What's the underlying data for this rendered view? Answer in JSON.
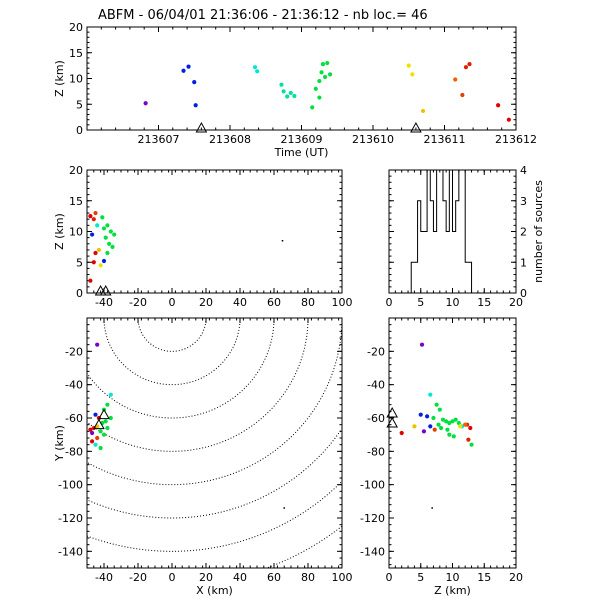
{
  "title": "ABFM - 06/04/01 21:36:06 - 21:36:12 - nb loc.=      46",
  "chart_data": [
    {
      "id": "time_panel",
      "type": "scatter",
      "xlabel": "Time (UT)",
      "ylabel": "Z (km)",
      "xlim": [
        213606,
        213612
      ],
      "ylim": [
        0,
        20
      ],
      "xticks": [
        "213607",
        "213608",
        "213609",
        "213610",
        "213611",
        "213612"
      ],
      "yticks": [
        "0",
        "5",
        "10",
        "15",
        "20"
      ],
      "stations": [
        213607.6,
        213610.6
      ],
      "points": [
        {
          "x": 213606.82,
          "y": 5.2,
          "color": "#7b00c8"
        },
        {
          "x": 213607.35,
          "y": 11.5,
          "color": "#0020e0"
        },
        {
          "x": 213607.42,
          "y": 12.3,
          "color": "#0020e0"
        },
        {
          "x": 213607.5,
          "y": 9.3,
          "color": "#0020e0"
        },
        {
          "x": 213607.52,
          "y": 4.8,
          "color": "#0020e0"
        },
        {
          "x": 213608.35,
          "y": 12.2,
          "color": "#00e8d0"
        },
        {
          "x": 213608.38,
          "y": 11.4,
          "color": "#00e8d0"
        },
        {
          "x": 213608.72,
          "y": 8.8,
          "color": "#00e0a0"
        },
        {
          "x": 213608.75,
          "y": 7.5,
          "color": "#00e0a0"
        },
        {
          "x": 213608.8,
          "y": 6.5,
          "color": "#00e0a0"
        },
        {
          "x": 213608.85,
          "y": 7.2,
          "color": "#00e0a0"
        },
        {
          "x": 213608.9,
          "y": 6.6,
          "color": "#00e0a0"
        },
        {
          "x": 213609.15,
          "y": 4.4,
          "color": "#00e040"
        },
        {
          "x": 213609.2,
          "y": 8.0,
          "color": "#00e040"
        },
        {
          "x": 213609.25,
          "y": 9.5,
          "color": "#00e040"
        },
        {
          "x": 213609.28,
          "y": 11.2,
          "color": "#00e040"
        },
        {
          "x": 213609.3,
          "y": 12.8,
          "color": "#00e040"
        },
        {
          "x": 213609.33,
          "y": 10.3,
          "color": "#00e040"
        },
        {
          "x": 213609.36,
          "y": 13.0,
          "color": "#00e040"
        },
        {
          "x": 213609.4,
          "y": 10.8,
          "color": "#00e040"
        },
        {
          "x": 213609.25,
          "y": 6.3,
          "color": "#00e040"
        },
        {
          "x": 213610.5,
          "y": 12.5,
          "color": "#f0e000"
        },
        {
          "x": 213610.55,
          "y": 10.8,
          "color": "#f0e000"
        },
        {
          "x": 213610.7,
          "y": 3.7,
          "color": "#f0c000"
        },
        {
          "x": 213611.15,
          "y": 9.8,
          "color": "#f06000"
        },
        {
          "x": 213611.25,
          "y": 6.8,
          "color": "#e04000"
        },
        {
          "x": 213611.3,
          "y": 12.2,
          "color": "#e02000"
        },
        {
          "x": 213611.35,
          "y": 12.8,
          "color": "#e02000"
        },
        {
          "x": 213611.75,
          "y": 4.8,
          "color": "#e00000"
        },
        {
          "x": 213611.9,
          "y": 2.0,
          "color": "#e00000"
        }
      ]
    },
    {
      "id": "xz_panel",
      "type": "scatter",
      "ylabel": "Z (km)",
      "xlim": [
        -50,
        100
      ],
      "ylim": [
        0,
        20
      ],
      "xticks": [
        "-40",
        "-20",
        "0",
        "20",
        "40",
        "60",
        "80",
        "100"
      ],
      "yticks": [
        "0",
        "5",
        "10",
        "15",
        "20"
      ],
      "stations": [
        -42,
        -39
      ],
      "points": [
        {
          "x": -48,
          "y": 12.5,
          "color": "#e00000"
        },
        {
          "x": -46,
          "y": 12.0,
          "color": "#e02000"
        },
        {
          "x": -45,
          "y": 13.0,
          "color": "#e04000"
        },
        {
          "x": -47,
          "y": 9.5,
          "color": "#0020e0"
        },
        {
          "x": -44,
          "y": 11.0,
          "color": "#00e8d0"
        },
        {
          "x": -45,
          "y": 6.5,
          "color": "#e00000"
        },
        {
          "x": -43,
          "y": 7.0,
          "color": "#f0c000"
        },
        {
          "x": -46,
          "y": 5.0,
          "color": "#e00000"
        },
        {
          "x": -42,
          "y": 4.5,
          "color": "#f0e000"
        },
        {
          "x": -48,
          "y": 2.0,
          "color": "#e00000"
        },
        {
          "x": -40,
          "y": 5.2,
          "color": "#0020e0"
        },
        {
          "x": -41,
          "y": 12.3,
          "color": "#00e040"
        },
        {
          "x": -38,
          "y": 11.0,
          "color": "#00e040"
        },
        {
          "x": -36,
          "y": 10.0,
          "color": "#00e040"
        },
        {
          "x": -39,
          "y": 9.0,
          "color": "#00e040"
        },
        {
          "x": -37,
          "y": 8.0,
          "color": "#00e040"
        },
        {
          "x": -35,
          "y": 7.5,
          "color": "#00e040"
        },
        {
          "x": -38,
          "y": 6.5,
          "color": "#00e040"
        },
        {
          "x": -34,
          "y": 9.5,
          "color": "#00e040"
        },
        {
          "x": -40,
          "y": 10.5,
          "color": "#00e040"
        },
        {
          "x": 65,
          "y": 8.5,
          "color": "#000000",
          "small": true
        }
      ]
    },
    {
      "id": "histogram_panel",
      "type": "bar",
      "ylabel": "number of sources",
      "xlim": [
        0,
        20
      ],
      "ylim": [
        0,
        4
      ],
      "xticks": [
        "0",
        "5",
        "10",
        "15",
        "20"
      ],
      "yticks": [
        "0",
        "1",
        "2",
        "3",
        "4"
      ],
      "bin_width": 0.5,
      "bin_start": 3.5,
      "values": [
        1,
        1,
        3,
        2,
        2,
        4,
        3,
        2,
        4,
        4,
        3,
        2,
        4,
        2,
        3,
        4,
        4,
        1,
        1
      ]
    },
    {
      "id": "xy_panel",
      "type": "scatter",
      "xlabel": "X (km)",
      "ylabel": "Y (km)",
      "xlim": [
        -50,
        100
      ],
      "ylim": [
        -150,
        0
      ],
      "xticks": [
        "-40",
        "-20",
        "0",
        "20",
        "40",
        "60",
        "80",
        "100"
      ],
      "yticks": [
        "-140",
        "-120",
        "-100",
        "-80",
        "-60",
        "-40",
        "-20"
      ],
      "range_rings_km": [
        20,
        40,
        60,
        80,
        100,
        120,
        140,
        160
      ],
      "stations": [
        [
          -40,
          -58
        ],
        [
          -43,
          -64
        ]
      ],
      "points": [
        {
          "x": -44,
          "y": -16,
          "color": "#7b00c8"
        },
        {
          "x": -36,
          "y": -46,
          "color": "#00e8d0"
        },
        {
          "x": -38,
          "y": -52,
          "color": "#00e040"
        },
        {
          "x": -40,
          "y": -55,
          "color": "#00e040"
        },
        {
          "x": -45,
          "y": -58,
          "color": "#0020e0"
        },
        {
          "x": -43,
          "y": -60,
          "color": "#e00000"
        },
        {
          "x": -41,
          "y": -63,
          "color": "#00e040"
        },
        {
          "x": -44,
          "y": -65,
          "color": "#f0c000"
        },
        {
          "x": -46,
          "y": -66,
          "color": "#e02000"
        },
        {
          "x": -48,
          "y": -67,
          "color": "#e00000"
        },
        {
          "x": -47,
          "y": -69,
          "color": "#7b00c8"
        },
        {
          "x": -42,
          "y": -68,
          "color": "#00e040"
        },
        {
          "x": -40,
          "y": -70,
          "color": "#00e040"
        },
        {
          "x": -38,
          "y": -66,
          "color": "#00e040"
        },
        {
          "x": -36,
          "y": -60,
          "color": "#00e040"
        },
        {
          "x": -39,
          "y": -62,
          "color": "#00e040"
        },
        {
          "x": -44,
          "y": -72,
          "color": "#e04000"
        },
        {
          "x": -47,
          "y": -74,
          "color": "#e00000"
        },
        {
          "x": -45,
          "y": -76,
          "color": "#00e8d0"
        },
        {
          "x": -42,
          "y": -78,
          "color": "#00e040"
        },
        {
          "x": 66,
          "y": -114,
          "color": "#000000",
          "small": true
        }
      ]
    },
    {
      "id": "zy_panel",
      "type": "scatter",
      "xlabel": "Z (km)",
      "xlim": [
        0,
        20
      ],
      "ylim": [
        -150,
        0
      ],
      "xticks": [
        "0",
        "5",
        "10",
        "15",
        "20"
      ],
      "yticks": [
        "-140",
        "-120",
        "-100",
        "-80",
        "-60",
        "-40",
        "-20"
      ],
      "stations": [
        [
          0.5,
          -57
        ],
        [
          0.5,
          -63
        ]
      ],
      "points": [
        {
          "x": 5.2,
          "y": -16,
          "color": "#7b00c8"
        },
        {
          "x": 6.5,
          "y": -46,
          "color": "#00e8d0"
        },
        {
          "x": 7.5,
          "y": -52,
          "color": "#00e040"
        },
        {
          "x": 8.0,
          "y": -55,
          "color": "#00e040"
        },
        {
          "x": 5.0,
          "y": -58,
          "color": "#0020e0"
        },
        {
          "x": 6.0,
          "y": -59,
          "color": "#0020e0"
        },
        {
          "x": 7.0,
          "y": -60,
          "color": "#00e040"
        },
        {
          "x": 8.5,
          "y": -61,
          "color": "#00e040"
        },
        {
          "x": 9.0,
          "y": -62,
          "color": "#00e040"
        },
        {
          "x": 9.5,
          "y": -63,
          "color": "#00e040"
        },
        {
          "x": 10.0,
          "y": -62,
          "color": "#00e040"
        },
        {
          "x": 10.5,
          "y": -61,
          "color": "#00e040"
        },
        {
          "x": 11.0,
          "y": -63,
          "color": "#00e040"
        },
        {
          "x": 7.8,
          "y": -64,
          "color": "#00e040"
        },
        {
          "x": 8.2,
          "y": -66,
          "color": "#00e040"
        },
        {
          "x": 9.2,
          "y": -67,
          "color": "#00e040"
        },
        {
          "x": 4.0,
          "y": -65,
          "color": "#f0c000"
        },
        {
          "x": 2.0,
          "y": -69,
          "color": "#e00000"
        },
        {
          "x": 6.5,
          "y": -65,
          "color": "#0020e0"
        },
        {
          "x": 7.2,
          "y": -67,
          "color": "#e04000"
        },
        {
          "x": 5.5,
          "y": -68,
          "color": "#7b00c8"
        },
        {
          "x": 12.3,
          "y": -64,
          "color": "#e02000"
        },
        {
          "x": 12.8,
          "y": -66,
          "color": "#e00000"
        },
        {
          "x": 11.5,
          "y": -65,
          "color": "#00e8d0"
        },
        {
          "x": 9.5,
          "y": -70,
          "color": "#00e040"
        },
        {
          "x": 10.2,
          "y": -71,
          "color": "#00e040"
        },
        {
          "x": 12.5,
          "y": -73,
          "color": "#e02000"
        },
        {
          "x": 13.0,
          "y": -76,
          "color": "#00e040"
        },
        {
          "x": 11.2,
          "y": -65,
          "color": "#f0e000"
        },
        {
          "x": 12.0,
          "y": -64,
          "color": "#f06000"
        },
        {
          "x": 6.8,
          "y": -114,
          "color": "#000000",
          "small": true
        }
      ]
    }
  ]
}
